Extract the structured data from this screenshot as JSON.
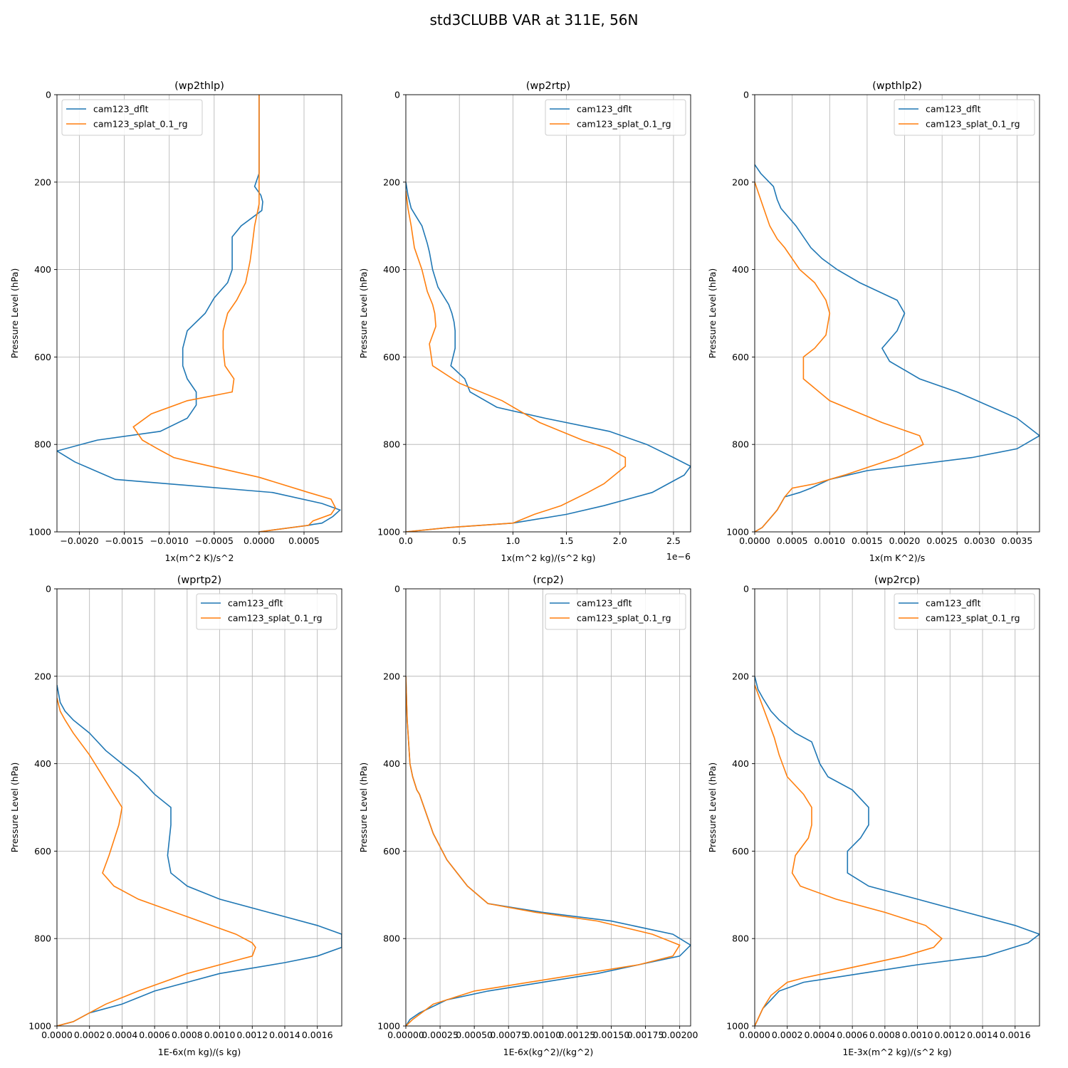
{
  "figure": {
    "title": "std3CLUBB VAR at 311E, 56N"
  },
  "colors": {
    "series0": "#1f77b4",
    "series1": "#ff7f0e",
    "grid": "#b0b0b0",
    "axis": "#000000"
  },
  "chart_data": [
    {
      "type": "line",
      "title": "(wp2thlp)",
      "xlabel": "1x(m^2 K)/s^2",
      "ylabel": "Pressure Level (hPa)",
      "xlim": [
        -0.00225,
        0.00092
      ],
      "ylim": [
        1000,
        0
      ],
      "xticks": [
        -0.002,
        -0.0015,
        -0.001,
        -0.0005,
        0.0,
        0.0005
      ],
      "xtick_labels": [
        "−0.0020",
        "−0.0015",
        "−0.0010",
        "−0.0005",
        "0.0000",
        "0.0005"
      ],
      "yticks": [
        0,
        200,
        400,
        600,
        800,
        1000
      ],
      "ytick_labels": [
        "0",
        "200",
        "400",
        "600",
        "800",
        "1000"
      ],
      "offset_text": "",
      "grid": true,
      "legend_loc": "upper left",
      "series": [
        {
          "name": "cam123_dflt",
          "x": [
            0,
            0,
            -5e-05,
            2e-05,
            4e-05,
            3e-05,
            -0.0002,
            -0.0003,
            -0.0003,
            -0.0003,
            -0.00035,
            -0.0005,
            -0.0006,
            -0.0008,
            -0.00085,
            -0.00085,
            -0.0008,
            -0.0007,
            -0.0007,
            -0.0008,
            -0.0011,
            -0.0018,
            -0.00225,
            -0.00205,
            -0.0016,
            0.00015,
            0.0007,
            0.0009,
            0.00082,
            0.0007,
            0.0006,
            0.00055,
            0
          ],
          "y": [
            0,
            180,
            210,
            230,
            245,
            265,
            300,
            325,
            360,
            400,
            430,
            465,
            500,
            540,
            580,
            620,
            650,
            680,
            710,
            740,
            770,
            790,
            815,
            840,
            880,
            910,
            935,
            950,
            965,
            980,
            983,
            985,
            1000
          ]
        },
        {
          "name": "cam123_splat_0.1_rg",
          "x": [
            0,
            0,
            -5e-05,
            -8e-05,
            -0.0001,
            -0.00012,
            -0.00015,
            -0.00025,
            -0.00035,
            -0.0004,
            -0.0004,
            -0.00038,
            -0.00028,
            -0.0003,
            -0.0008,
            -0.0012,
            -0.0014,
            -0.0013,
            -0.00113,
            -0.00095,
            -0.00075,
            0,
            0.00055,
            0.0008,
            0.00085,
            0.0008,
            0.0006,
            0.00055,
            0
          ],
          "y": [
            0,
            250,
            300,
            350,
            380,
            400,
            430,
            470,
            500,
            540,
            580,
            620,
            650,
            680,
            700,
            730,
            760,
            790,
            810,
            830,
            840,
            875,
            910,
            925,
            945,
            960,
            975,
            985,
            1000
          ]
        }
      ]
    },
    {
      "type": "line",
      "title": "(wp2rtp)",
      "xlabel": "1x(m^2 kg)/(s^2 kg)",
      "ylabel": "Pressure Level (hPa)",
      "xlim": [
        0,
        2.66
      ],
      "ylim": [
        1000,
        0
      ],
      "xticks": [
        0,
        0.5,
        1.0,
        1.5,
        2.0,
        2.5
      ],
      "xtick_labels": [
        "0.0",
        "0.5",
        "1.0",
        "1.5",
        "2.0",
        "2.5"
      ],
      "yticks": [
        0,
        200,
        400,
        600,
        800,
        1000
      ],
      "ytick_labels": [
        "0",
        "200",
        "400",
        "600",
        "800",
        "1000"
      ],
      "offset_text": "1e−6",
      "grid": true,
      "legend_loc": "upper right",
      "series": [
        {
          "name": "cam123_dflt",
          "x": [
            0,
            0.02,
            0.05,
            0.1,
            0.15,
            0.2,
            0.22,
            0.25,
            0.3,
            0.4,
            0.43,
            0.45,
            0.46,
            0.46,
            0.42,
            0.55,
            0.6,
            0.85,
            1.3,
            1.9,
            2.25,
            2.5,
            2.66,
            2.6,
            2.45,
            2.3,
            1.85,
            1.5,
            1.0,
            0.7,
            0.4,
            0
          ],
          "y": [
            200,
            230,
            260,
            280,
            300,
            340,
            360,
            400,
            440,
            480,
            500,
            520,
            540,
            580,
            620,
            650,
            680,
            715,
            740,
            770,
            800,
            830,
            850,
            870,
            890,
            910,
            940,
            960,
            980,
            985,
            990,
            1000
          ]
        },
        {
          "name": "cam123_splat_0.1_rg",
          "x": [
            0,
            0.02,
            0.05,
            0.08,
            0.15,
            0.2,
            0.25,
            0.27,
            0.28,
            0.22,
            0.25,
            0.5,
            0.9,
            1.25,
            1.65,
            1.9,
            2.05,
            2.05,
            1.95,
            1.85,
            1.7,
            1.45,
            1.2,
            1.0,
            0.7,
            0.4,
            0
          ],
          "y": [
            220,
            260,
            300,
            350,
            400,
            450,
            480,
            500,
            530,
            570,
            620,
            660,
            700,
            750,
            790,
            810,
            830,
            850,
            870,
            890,
            910,
            940,
            960,
            980,
            985,
            990,
            1000
          ]
        }
      ]
    },
    {
      "type": "line",
      "title": "(wpthlp2)",
      "xlabel": "1x(m K^2)/s",
      "ylabel": "Pressure Level (hPa)",
      "xlim": [
        0,
        0.0038
      ],
      "ylim": [
        1000,
        0
      ],
      "xticks": [
        0,
        0.0005,
        0.001,
        0.0015,
        0.002,
        0.0025,
        0.003,
        0.0035
      ],
      "xtick_labels": [
        "0.0000",
        "0.0005",
        "0.0010",
        "0.0015",
        "0.0020",
        "0.0025",
        "0.0030",
        "0.0035"
      ],
      "yticks": [
        0,
        200,
        400,
        600,
        800,
        1000
      ],
      "ytick_labels": [
        "0",
        "200",
        "400",
        "600",
        "800",
        "1000"
      ],
      "offset_text": "",
      "grid": true,
      "legend_loc": "upper right",
      "series": [
        {
          "name": "cam123_dflt",
          "x": [
            0,
            8e-05,
            0.00025,
            0.0003,
            0.00035,
            0.00055,
            0.00075,
            0.0009,
            0.0011,
            0.0014,
            0.0019,
            0.002,
            0.0019,
            0.0017,
            0.0018,
            0.0022,
            0.0027,
            0.0035,
            0.0038,
            0.0035,
            0.0029,
            0.0015,
            0.001,
            0.00075,
            0.0006,
            0.0004,
            0.0003,
            0.0002,
            0.0001,
            0
          ],
          "y": [
            160,
            180,
            210,
            240,
            260,
            300,
            350,
            375,
            400,
            430,
            470,
            500,
            540,
            580,
            610,
            650,
            680,
            740,
            780,
            810,
            830,
            860,
            880,
            900,
            910,
            920,
            950,
            970,
            990,
            1000
          ]
        },
        {
          "name": "cam123_splat_0.1_rg",
          "x": [
            0,
            0.0001,
            0.0002,
            0.0003,
            0.0004,
            0.0006,
            0.0008,
            0.00095,
            0.001,
            0.00095,
            0.0008,
            0.00065,
            0.00065,
            0.001,
            0.0017,
            0.0022,
            0.00225,
            0.0019,
            0.0012,
            0.0008,
            0.0005,
            0.0004,
            0.0003,
            0.0002,
            0.0001,
            0
          ],
          "y": [
            200,
            250,
            300,
            330,
            350,
            400,
            430,
            470,
            500,
            550,
            580,
            600,
            650,
            700,
            750,
            780,
            800,
            830,
            870,
            890,
            900,
            920,
            950,
            970,
            990,
            1000
          ]
        }
      ]
    },
    {
      "type": "line",
      "title": "(wprtp2)",
      "xlabel": "1E-6x(m kg)/(s kg)",
      "ylabel": "Pressure Level (hPa)",
      "xlim": [
        0,
        0.00175
      ],
      "ylim": [
        1000,
        0
      ],
      "xticks": [
        0,
        0.0002,
        0.0004,
        0.0006,
        0.0008,
        0.001,
        0.0012,
        0.0014,
        0.0016
      ],
      "xtick_labels": [
        "0.0000",
        "0.0002",
        "0.0004",
        "0.0006",
        "0.0008",
        "0.0010",
        "0.0012",
        "0.0014",
        "0.0016"
      ],
      "yticks": [
        0,
        200,
        400,
        600,
        800,
        1000
      ],
      "ytick_labels": [
        "0",
        "200",
        "400",
        "600",
        "800",
        "1000"
      ],
      "offset_text": "",
      "grid": true,
      "legend_loc": "upper right",
      "series": [
        {
          "name": "cam123_dflt",
          "x": [
            0,
            2e-05,
            5e-05,
            0.0001,
            0.0002,
            0.0003,
            0.0004,
            0.0005,
            0.0006,
            0.0007,
            0.0007,
            0.00068,
            0.0007,
            0.0008,
            0.001,
            0.0014,
            0.0016,
            0.00175,
            0.00175,
            0.0016,
            0.0014,
            0.001,
            0.0008,
            0.0006,
            0.0004,
            0.0002,
            0.0001,
            0
          ],
          "y": [
            220,
            260,
            280,
            300,
            330,
            370,
            400,
            430,
            470,
            500,
            540,
            610,
            650,
            680,
            710,
            750,
            770,
            790,
            820,
            840,
            855,
            880,
            900,
            920,
            950,
            970,
            990,
            1000
          ]
        },
        {
          "name": "cam123_splat_0.1_rg",
          "x": [
            0,
            2e-05,
            5e-05,
            0.0001,
            0.0002,
            0.0003,
            0.00035,
            0.0004,
            0.00038,
            0.00032,
            0.00028,
            0.00035,
            0.0005,
            0.0008,
            0.0011,
            0.0012,
            0.00122,
            0.0012,
            0.0011,
            0.0008,
            0.0005,
            0.0003,
            0.0002,
            0.0001,
            0
          ],
          "y": [
            250,
            280,
            300,
            330,
            380,
            440,
            470,
            500,
            540,
            610,
            650,
            680,
            710,
            750,
            790,
            810,
            820,
            840,
            850,
            880,
            920,
            950,
            970,
            990,
            1000
          ]
        }
      ]
    },
    {
      "type": "line",
      "title": "(rcp2)",
      "xlabel": "1E-6x(kg^2)/(kg^2)",
      "ylabel": "Pressure Level (hPa)",
      "xlim": [
        0,
        0.00208
      ],
      "ylim": [
        1000,
        0
      ],
      "xticks": [
        0,
        0.00025,
        0.0005,
        0.00075,
        0.001,
        0.00125,
        0.0015,
        0.00175,
        0.002
      ],
      "xtick_labels": [
        "0.00000",
        "0.00025",
        "0.00050",
        "0.00075",
        "0.00100",
        "0.00125",
        "0.00150",
        "0.00175",
        "0.00200"
      ],
      "yticks": [
        0,
        200,
        400,
        600,
        800,
        1000
      ],
      "ytick_labels": [
        "0",
        "200",
        "400",
        "600",
        "800",
        "1000"
      ],
      "offset_text": "",
      "grid": true,
      "legend_loc": "upper right",
      "series": [
        {
          "name": "cam123_dflt",
          "x": [
            0,
            1e-05,
            3e-05,
            5e-05,
            8e-05,
            0.0001,
            0.0002,
            0.0003,
            0.00045,
            0.0006,
            0.001,
            0.0015,
            0.00195,
            0.00208,
            0.002,
            0.0017,
            0.0014,
            0.001,
            0.0006,
            0.0003,
            0.0001,
            3e-05,
            0
          ],
          "y": [
            200,
            300,
            400,
            430,
            460,
            470,
            560,
            620,
            680,
            720,
            740,
            760,
            790,
            815,
            840,
            860,
            880,
            900,
            920,
            940,
            970,
            985,
            1000
          ]
        },
        {
          "name": "cam123_splat_0.1_rg",
          "x": [
            0,
            1e-05,
            3e-05,
            5e-05,
            8e-05,
            0.0001,
            0.0002,
            0.0003,
            0.00045,
            0.0006,
            0.00095,
            0.0014,
            0.0018,
            0.002,
            0.00195,
            0.0017,
            0.0013,
            0.0009,
            0.0005,
            0.0002,
            5e-05,
            0
          ],
          "y": [
            200,
            300,
            400,
            430,
            460,
            470,
            560,
            620,
            680,
            720,
            740,
            760,
            790,
            815,
            840,
            860,
            880,
            900,
            920,
            950,
            985,
            1000
          ]
        }
      ]
    },
    {
      "type": "line",
      "title": "(wp2rcp)",
      "xlabel": "1E-3x(m^2 kg)/(s^2 kg)",
      "ylabel": "Pressure Level (hPa)",
      "xlim": [
        0,
        0.00175
      ],
      "ylim": [
        1000,
        0
      ],
      "xticks": [
        0,
        0.0002,
        0.0004,
        0.0006,
        0.0008,
        0.001,
        0.0012,
        0.0014,
        0.0016
      ],
      "xtick_labels": [
        "0.0000",
        "0.0002",
        "0.0004",
        "0.0006",
        "0.0008",
        "0.0010",
        "0.0012",
        "0.0014",
        "0.0016"
      ],
      "yticks": [
        0,
        200,
        400,
        600,
        800,
        1000
      ],
      "ytick_labels": [
        "0",
        "200",
        "400",
        "600",
        "800",
        "1000"
      ],
      "offset_text": "",
      "grid": true,
      "legend_loc": "upper right",
      "series": [
        {
          "name": "cam123_dflt",
          "x": [
            0,
            2e-05,
            5e-05,
            0.0001,
            0.00015,
            0.00025,
            0.00035,
            0.00038,
            0.0004,
            0.00045,
            0.0006,
            0.0007,
            0.0007,
            0.00065,
            0.00057,
            0.00057,
            0.0007,
            0.001,
            0.0013,
            0.0016,
            0.00175,
            0.00168,
            0.00142,
            0.001,
            0.00065,
            0.0003,
            0.00015,
            0.0001,
            5e-05,
            0
          ],
          "y": [
            200,
            230,
            250,
            280,
            300,
            330,
            350,
            380,
            400,
            430,
            460,
            500,
            540,
            570,
            600,
            650,
            680,
            710,
            740,
            770,
            790,
            810,
            840,
            860,
            880,
            900,
            920,
            940,
            960,
            1000
          ]
        },
        {
          "name": "cam123_splat_0.1_rg",
          "x": [
            0,
            3e-05,
            8e-05,
            0.00012,
            0.00015,
            0.0002,
            0.0003,
            0.00035,
            0.00035,
            0.00033,
            0.00025,
            0.00023,
            0.00028,
            0.0005,
            0.0008,
            0.00105,
            0.00115,
            0.0011,
            0.00092,
            0.00055,
            0.0003,
            0.0002,
            0.0001,
            5e-05,
            0
          ],
          "y": [
            220,
            250,
            300,
            340,
            380,
            430,
            470,
            500,
            540,
            570,
            610,
            650,
            680,
            710,
            740,
            770,
            800,
            820,
            840,
            870,
            890,
            900,
            930,
            960,
            1000
          ]
        }
      ]
    }
  ]
}
